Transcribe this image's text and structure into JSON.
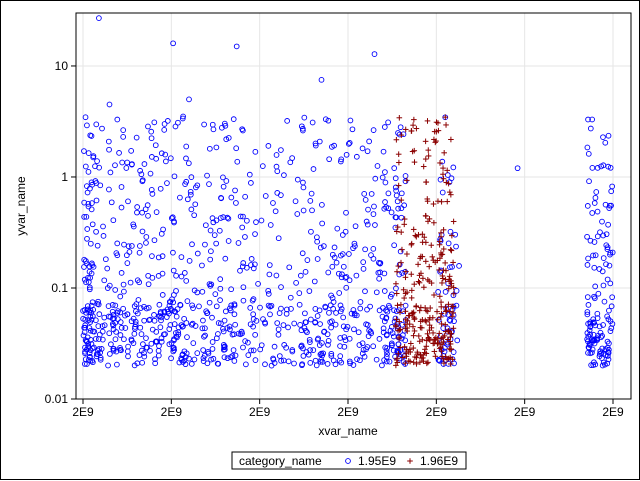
{
  "chart_data": {
    "type": "scatter",
    "title": "",
    "xlabel": "xvar_name",
    "ylabel": "yvar_name",
    "x_tick_labels": [
      "2E9",
      "2E9",
      "2E9",
      "2E9",
      "2E9",
      "2E9",
      "2E9"
    ],
    "y_scale": "log",
    "ylim": [
      0.01,
      30
    ],
    "y_ticks": [
      0.01,
      0.1,
      1,
      10
    ],
    "y_tick_labels": [
      "0.01",
      "0.1",
      "1",
      "10"
    ],
    "grid": true,
    "legend": {
      "title": "category_name",
      "placement": "bottom",
      "entries": [
        "1.95E9",
        "1.96E9"
      ]
    },
    "series": [
      {
        "name": "1.95E9",
        "marker": "circle",
        "color": "#0000ff",
        "density": [
          {
            "x": [
              0.0,
              0.02
            ],
            "n": 95
          },
          {
            "x": [
              0.02,
              0.12
            ],
            "n": 170
          },
          {
            "x": [
              0.12,
              0.2
            ],
            "n": 145
          },
          {
            "x": [
              0.2,
              0.33
            ],
            "n": 175
          },
          {
            "x": [
              0.33,
              0.41
            ],
            "n": 70
          },
          {
            "x": [
              0.41,
              0.58
            ],
            "n": 245
          },
          {
            "x": [
              0.58,
              0.61
            ],
            "n": 70
          },
          {
            "x": [
              0.67,
              0.71
            ],
            "n": 60
          },
          {
            "x": [
              0.95,
              1.0
            ],
            "n": 140
          }
        ],
        "outliers": [
          {
            "x": 0.03,
            "y": 27
          },
          {
            "x": 0.17,
            "y": 16
          },
          {
            "x": 0.29,
            "y": 15
          },
          {
            "x": 0.55,
            "y": 12.8
          },
          {
            "x": 0.45,
            "y": 7.5
          },
          {
            "x": 0.05,
            "y": 4.5
          },
          {
            "x": 0.2,
            "y": 5.0
          },
          {
            "x": 0.16,
            "y": 3.2
          },
          {
            "x": 0.82,
            "y": 1.2
          }
        ]
      },
      {
        "name": "1.96E9",
        "marker": "plus",
        "color": "#8b0000",
        "density": [
          {
            "x": [
              0.59,
              0.7
            ],
            "n": 300
          }
        ],
        "outliers": [
          {
            "x": 0.65,
            "y": 3.2
          },
          {
            "x": 0.62,
            "y": 2.6
          }
        ]
      }
    ]
  },
  "colors": {
    "series1": "#0000ff",
    "series2": "#8b0000",
    "grid": "#e6e6e6",
    "axis": "#000000"
  }
}
